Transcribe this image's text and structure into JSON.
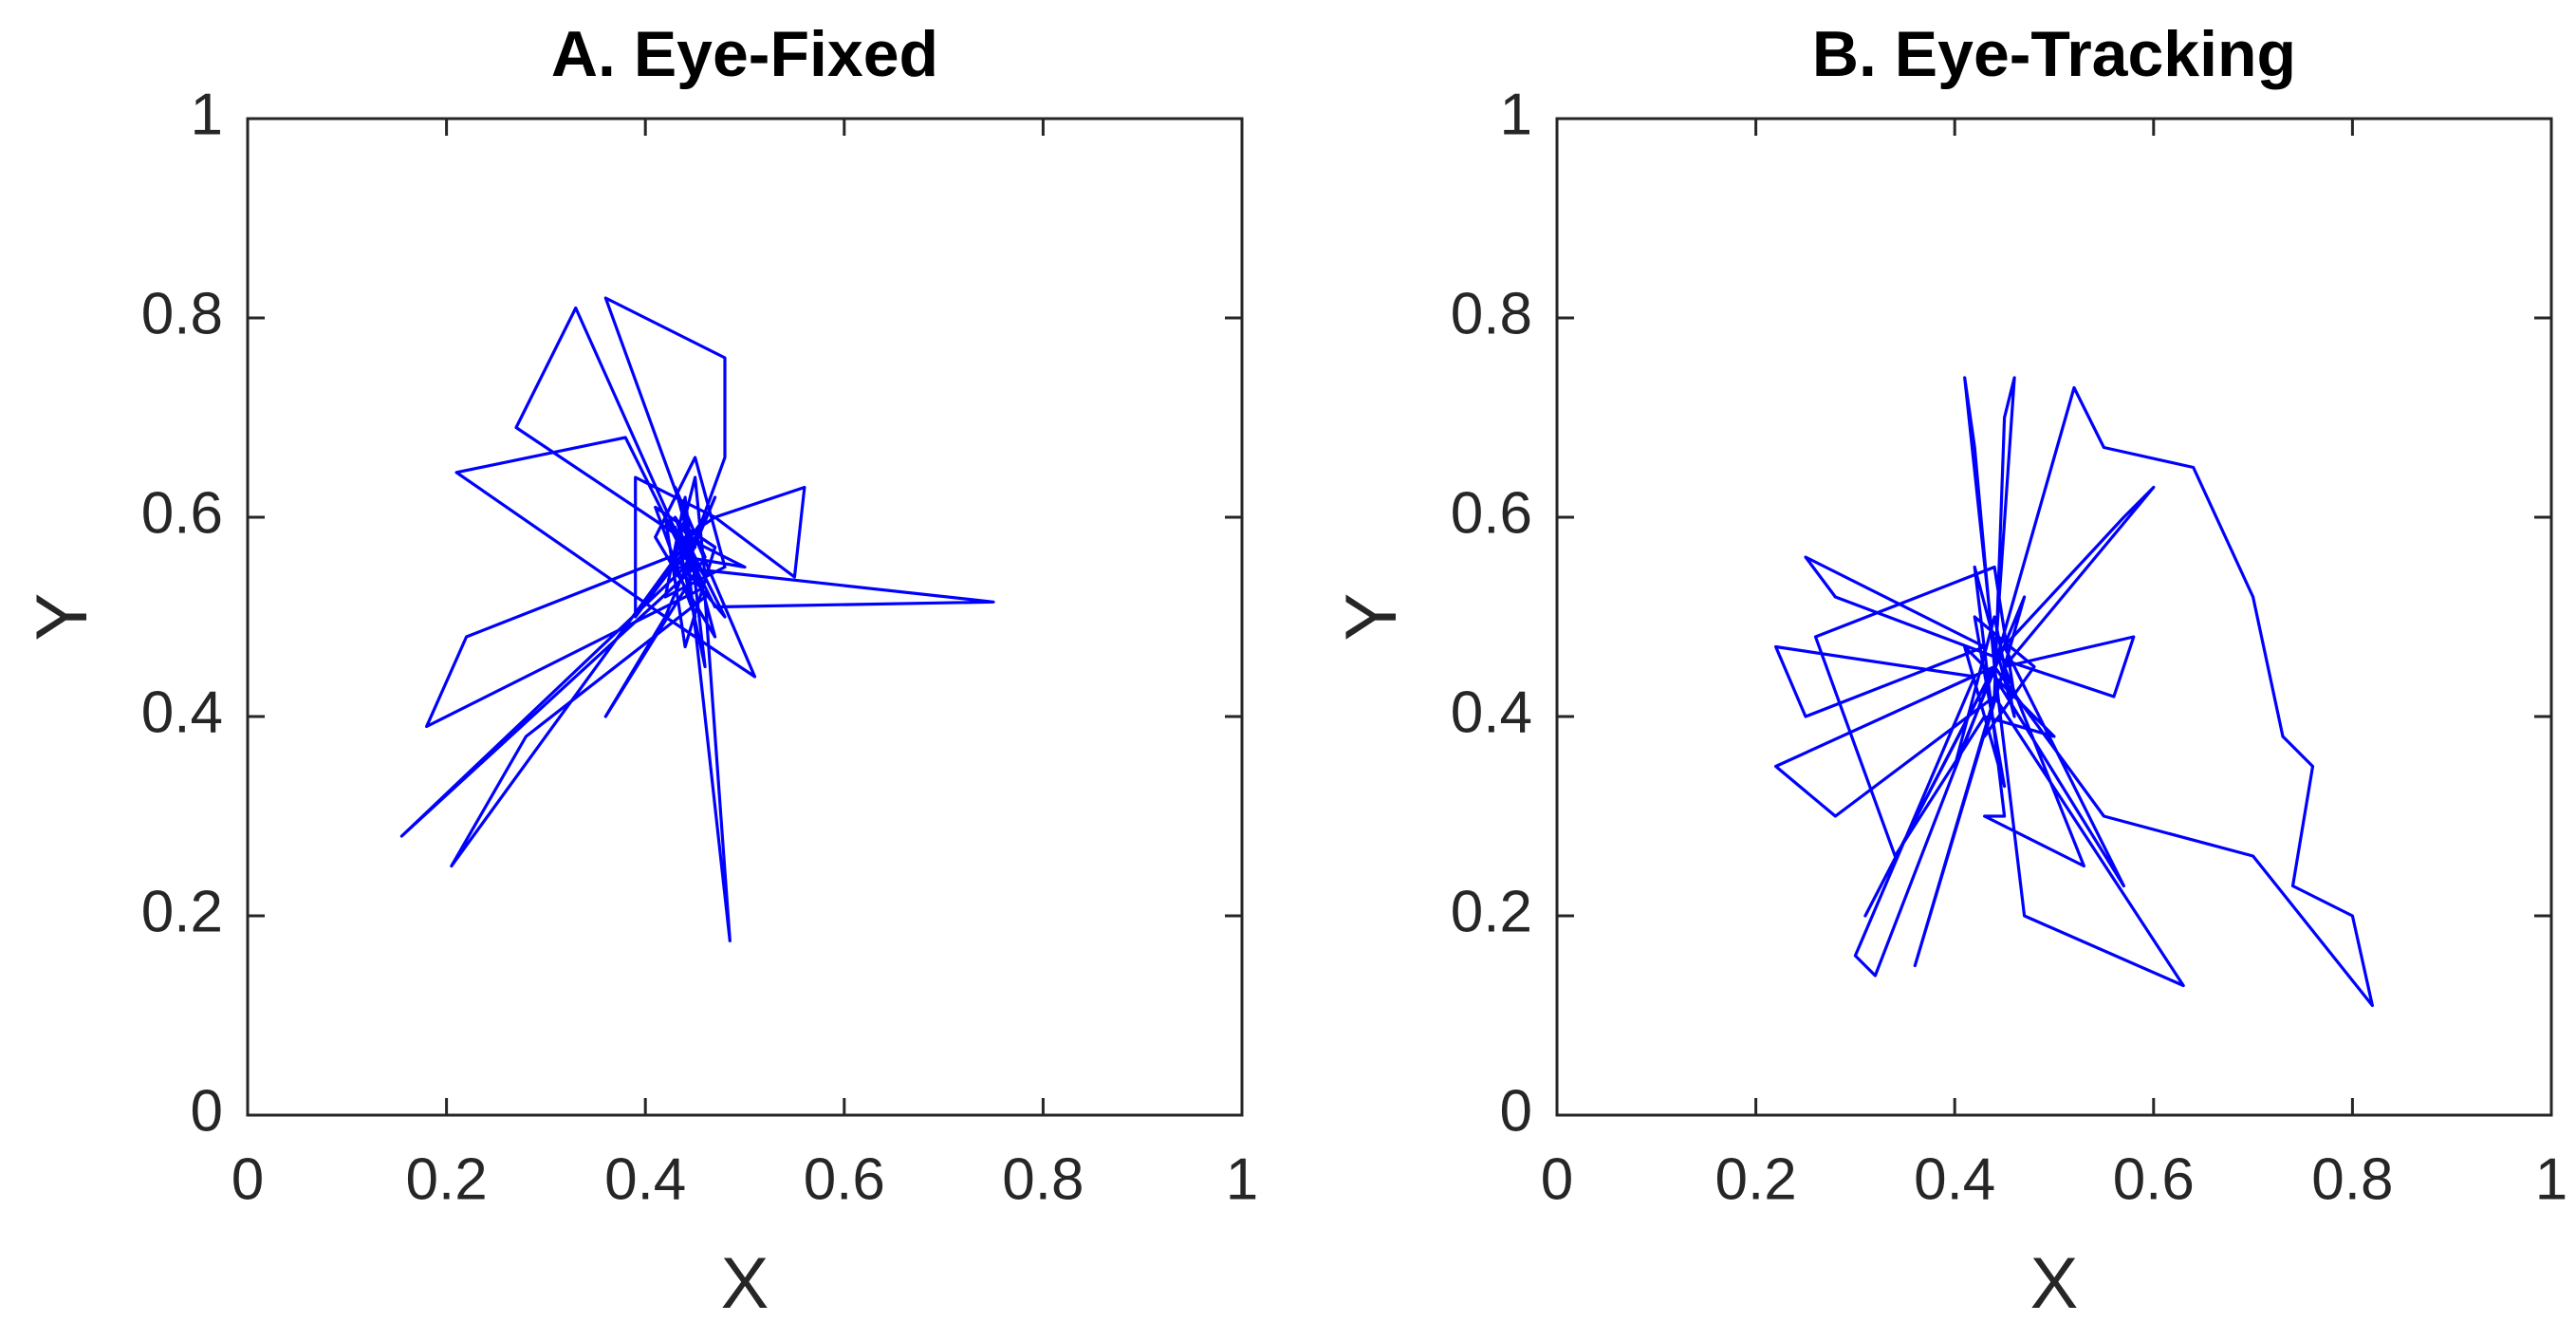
{
  "chart_data": [
    {
      "type": "line",
      "title": "A. Eye-Fixed",
      "xlabel": "X",
      "ylabel": "Y",
      "color": "#0000ff",
      "xlim": [
        0,
        1
      ],
      "ylim": [
        0,
        1
      ],
      "xticks": [
        0,
        0.2,
        0.4,
        0.6,
        0.8,
        1
      ],
      "yticks": [
        0,
        0.2,
        0.4,
        0.6,
        0.8,
        1
      ],
      "x": [
        0.45,
        0.43,
        0.46,
        0.33,
        0.27,
        0.45,
        0.44,
        0.36,
        0.48,
        0.48,
        0.44,
        0.47,
        0.42,
        0.21,
        0.38,
        0.44,
        0.46,
        0.18,
        0.22,
        0.45,
        0.43,
        0.75,
        0.47,
        0.45,
        0.155,
        0.44,
        0.46,
        0.205,
        0.28,
        0.46,
        0.485,
        0.44,
        0.47,
        0.56,
        0.55,
        0.47,
        0.39,
        0.39,
        0.45,
        0.51,
        0.42,
        0.36,
        0.46,
        0.43,
        0.47,
        0.41,
        0.45,
        0.48,
        0.42,
        0.44,
        0.46,
        0.43,
        0.45,
        0.41,
        0.47,
        0.44,
        0.42,
        0.46,
        0.45,
        0.43,
        0.48,
        0.44,
        0.5,
        0.44
      ],
      "values": [
        0.57,
        0.6,
        0.52,
        0.81,
        0.69,
        0.57,
        0.6,
        0.82,
        0.76,
        0.66,
        0.55,
        0.62,
        0.5,
        0.645,
        0.68,
        0.56,
        0.53,
        0.39,
        0.48,
        0.57,
        0.55,
        0.515,
        0.51,
        0.55,
        0.28,
        0.55,
        0.6,
        0.25,
        0.38,
        0.52,
        0.175,
        0.58,
        0.6,
        0.63,
        0.54,
        0.6,
        0.64,
        0.5,
        0.58,
        0.44,
        0.5,
        0.4,
        0.56,
        0.63,
        0.48,
        0.58,
        0.66,
        0.55,
        0.52,
        0.62,
        0.45,
        0.59,
        0.5,
        0.61,
        0.57,
        0.47,
        0.6,
        0.54,
        0.64,
        0.56,
        0.5,
        0.58,
        0.55,
        0.56
      ]
    },
    {
      "type": "line",
      "title": "B. Eye-Tracking",
      "xlabel": "X",
      "ylabel": "Y",
      "color": "#0000ff",
      "xlim": [
        0,
        1
      ],
      "ylim": [
        0,
        1
      ],
      "xticks": [
        0,
        0.2,
        0.4,
        0.6,
        0.8,
        1
      ],
      "yticks": [
        0,
        0.2,
        0.4,
        0.6,
        0.8,
        1
      ],
      "x": [
        0.44,
        0.32,
        0.3,
        0.42,
        0.22,
        0.25,
        0.43,
        0.27,
        0.25,
        0.28,
        0.44,
        0.41,
        0.42,
        0.44,
        0.46,
        0.45,
        0.44,
        0.63,
        0.47,
        0.44,
        0.52,
        0.55,
        0.64,
        0.7,
        0.73,
        0.76,
        0.74,
        0.8,
        0.82,
        0.7,
        0.55,
        0.44,
        0.22,
        0.28,
        0.44,
        0.36,
        0.45,
        0.58,
        0.56,
        0.44,
        0.57,
        0.6,
        0.45,
        0.53,
        0.43,
        0.45,
        0.42,
        0.46,
        0.44,
        0.4,
        0.47,
        0.43,
        0.48,
        0.42,
        0.45,
        0.41,
        0.46,
        0.44,
        0.26,
        0.34,
        0.43,
        0.5,
        0.44,
        0.57,
        0.45,
        0.31,
        0.44
      ],
      "values": [
        0.45,
        0.14,
        0.16,
        0.44,
        0.47,
        0.4,
        0.47,
        0.55,
        0.56,
        0.52,
        0.46,
        0.74,
        0.67,
        0.45,
        0.74,
        0.7,
        0.42,
        0.13,
        0.2,
        0.45,
        0.73,
        0.67,
        0.65,
        0.52,
        0.38,
        0.35,
        0.23,
        0.2,
        0.11,
        0.26,
        0.3,
        0.45,
        0.35,
        0.3,
        0.42,
        0.15,
        0.45,
        0.48,
        0.42,
        0.46,
        0.6,
        0.63,
        0.45,
        0.25,
        0.3,
        0.3,
        0.55,
        0.4,
        0.5,
        0.35,
        0.52,
        0.38,
        0.45,
        0.5,
        0.33,
        0.47,
        0.42,
        0.55,
        0.48,
        0.26,
        0.4,
        0.38,
        0.44,
        0.23,
        0.47,
        0.2,
        0.45
      ]
    }
  ]
}
